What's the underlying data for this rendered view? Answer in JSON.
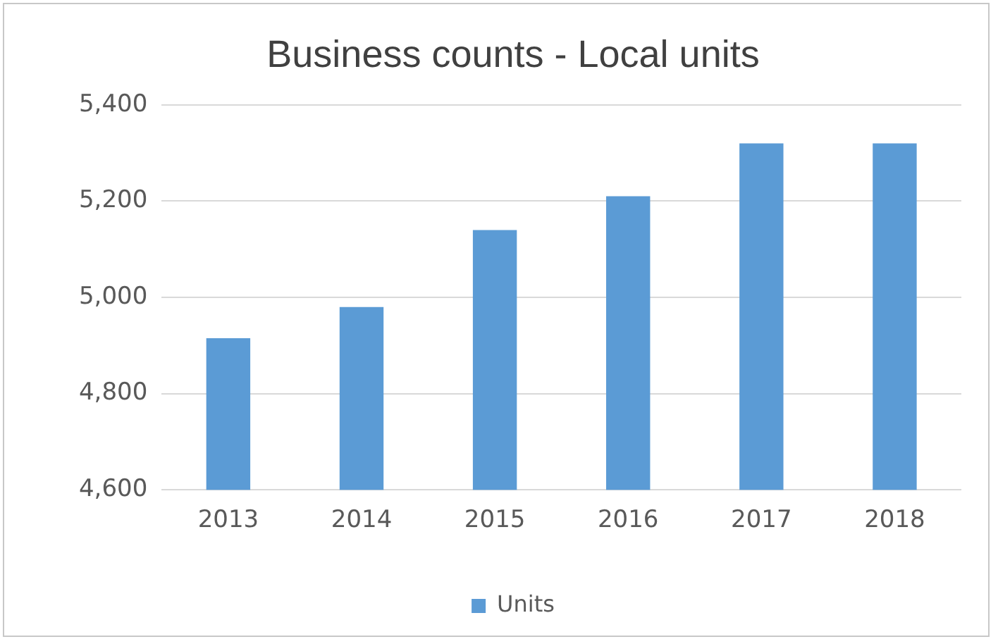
{
  "chart_data": {
    "type": "bar",
    "title": "Business counts - Local units",
    "categories": [
      "2013",
      "2014",
      "2015",
      "2016",
      "2017",
      "2018"
    ],
    "series": [
      {
        "name": "Units",
        "color": "#5b9bd5",
        "values": [
          4915,
          4980,
          5140,
          5210,
          5320,
          5320
        ]
      }
    ],
    "ylim": [
      4600,
      5400
    ],
    "yticks": [
      {
        "value": 4600,
        "label": "4,600"
      },
      {
        "value": 4800,
        "label": "4,800"
      },
      {
        "value": 5000,
        "label": "5,000"
      },
      {
        "value": 5200,
        "label": "5,200"
      },
      {
        "value": 5400,
        "label": "5,400"
      }
    ],
    "grid": "y",
    "legend": "bottom"
  }
}
